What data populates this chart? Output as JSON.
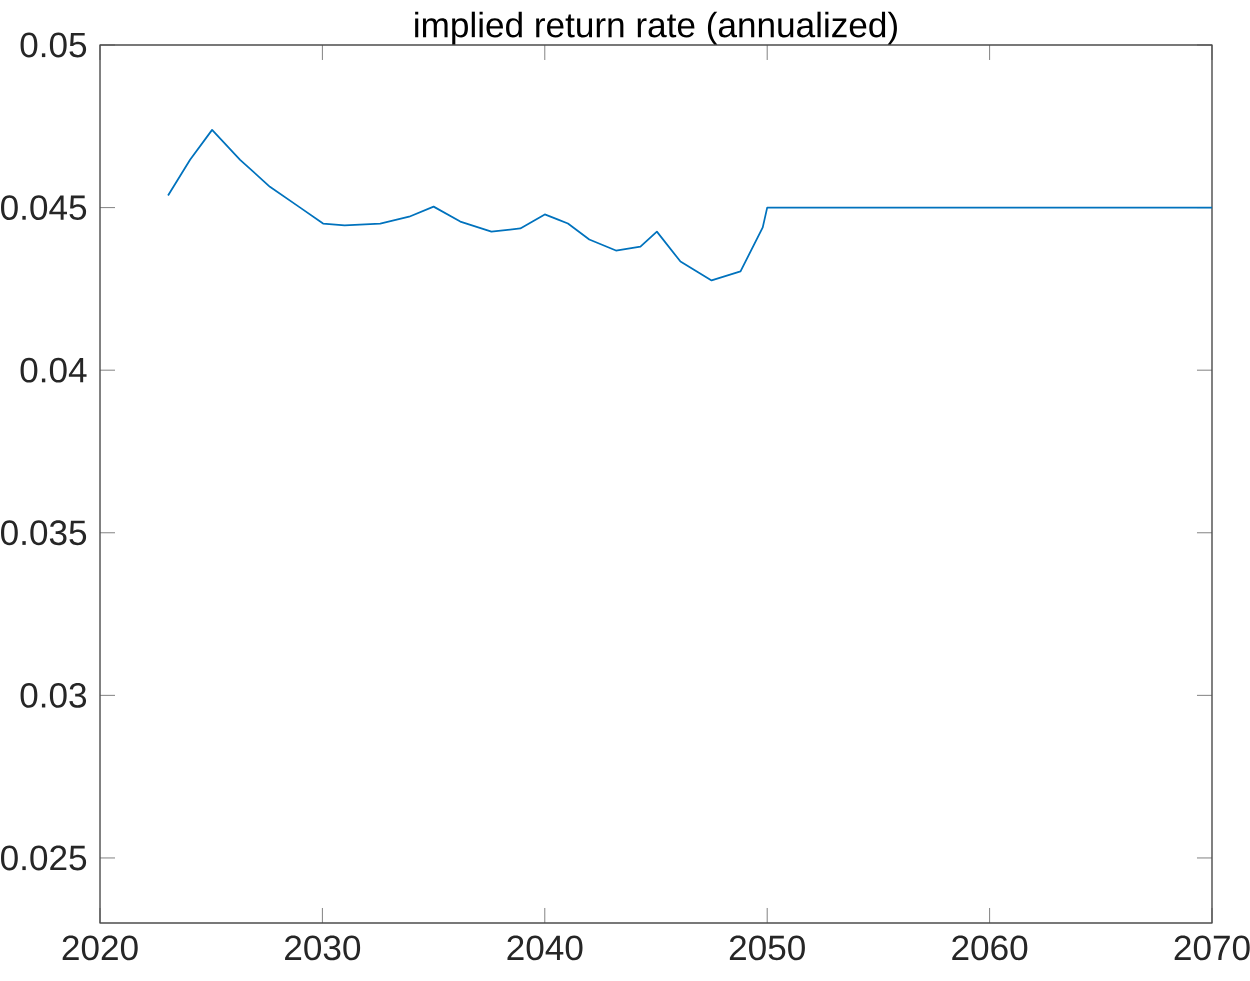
{
  "chart_data": {
    "type": "line",
    "title": "implied return rate (annualized)",
    "series": [
      {
        "color": "#0072bd",
        "x": [
          2023.06,
          2024.05,
          2025.04,
          2026.3,
          2027.64,
          2029.0,
          2030.03,
          2031.0,
          2032.6,
          2033.9,
          2035.0,
          2036.2,
          2037.6,
          2038.9,
          2040.0,
          2040.6,
          2041.04,
          2042.0,
          2043.2,
          2044.3,
          2045.04,
          2046.1,
          2047.5,
          2048.8,
          2049.8,
          2050.0,
          2070.0
        ],
        "values": [
          0.04537,
          0.04647,
          0.04739,
          0.04647,
          0.04564,
          0.045,
          0.04451,
          0.04445,
          0.04451,
          0.04472,
          0.04503,
          0.04457,
          0.04426,
          0.04436,
          0.04479,
          0.04463,
          0.04451,
          0.04402,
          0.04368,
          0.0438,
          0.04426,
          0.04334,
          0.04276,
          0.04304,
          0.04439,
          0.045,
          0.045
        ]
      }
    ],
    "xlim": [
      2020,
      2070
    ],
    "xticks": [
      2020,
      2030,
      2040,
      2050,
      2060,
      2070
    ],
    "ylim": [
      0.023,
      0.05
    ],
    "yticks": [
      0.025,
      0.03,
      0.035,
      0.04,
      0.045,
      0.05
    ],
    "grid": false,
    "marker": "none",
    "line_style": "solid"
  }
}
